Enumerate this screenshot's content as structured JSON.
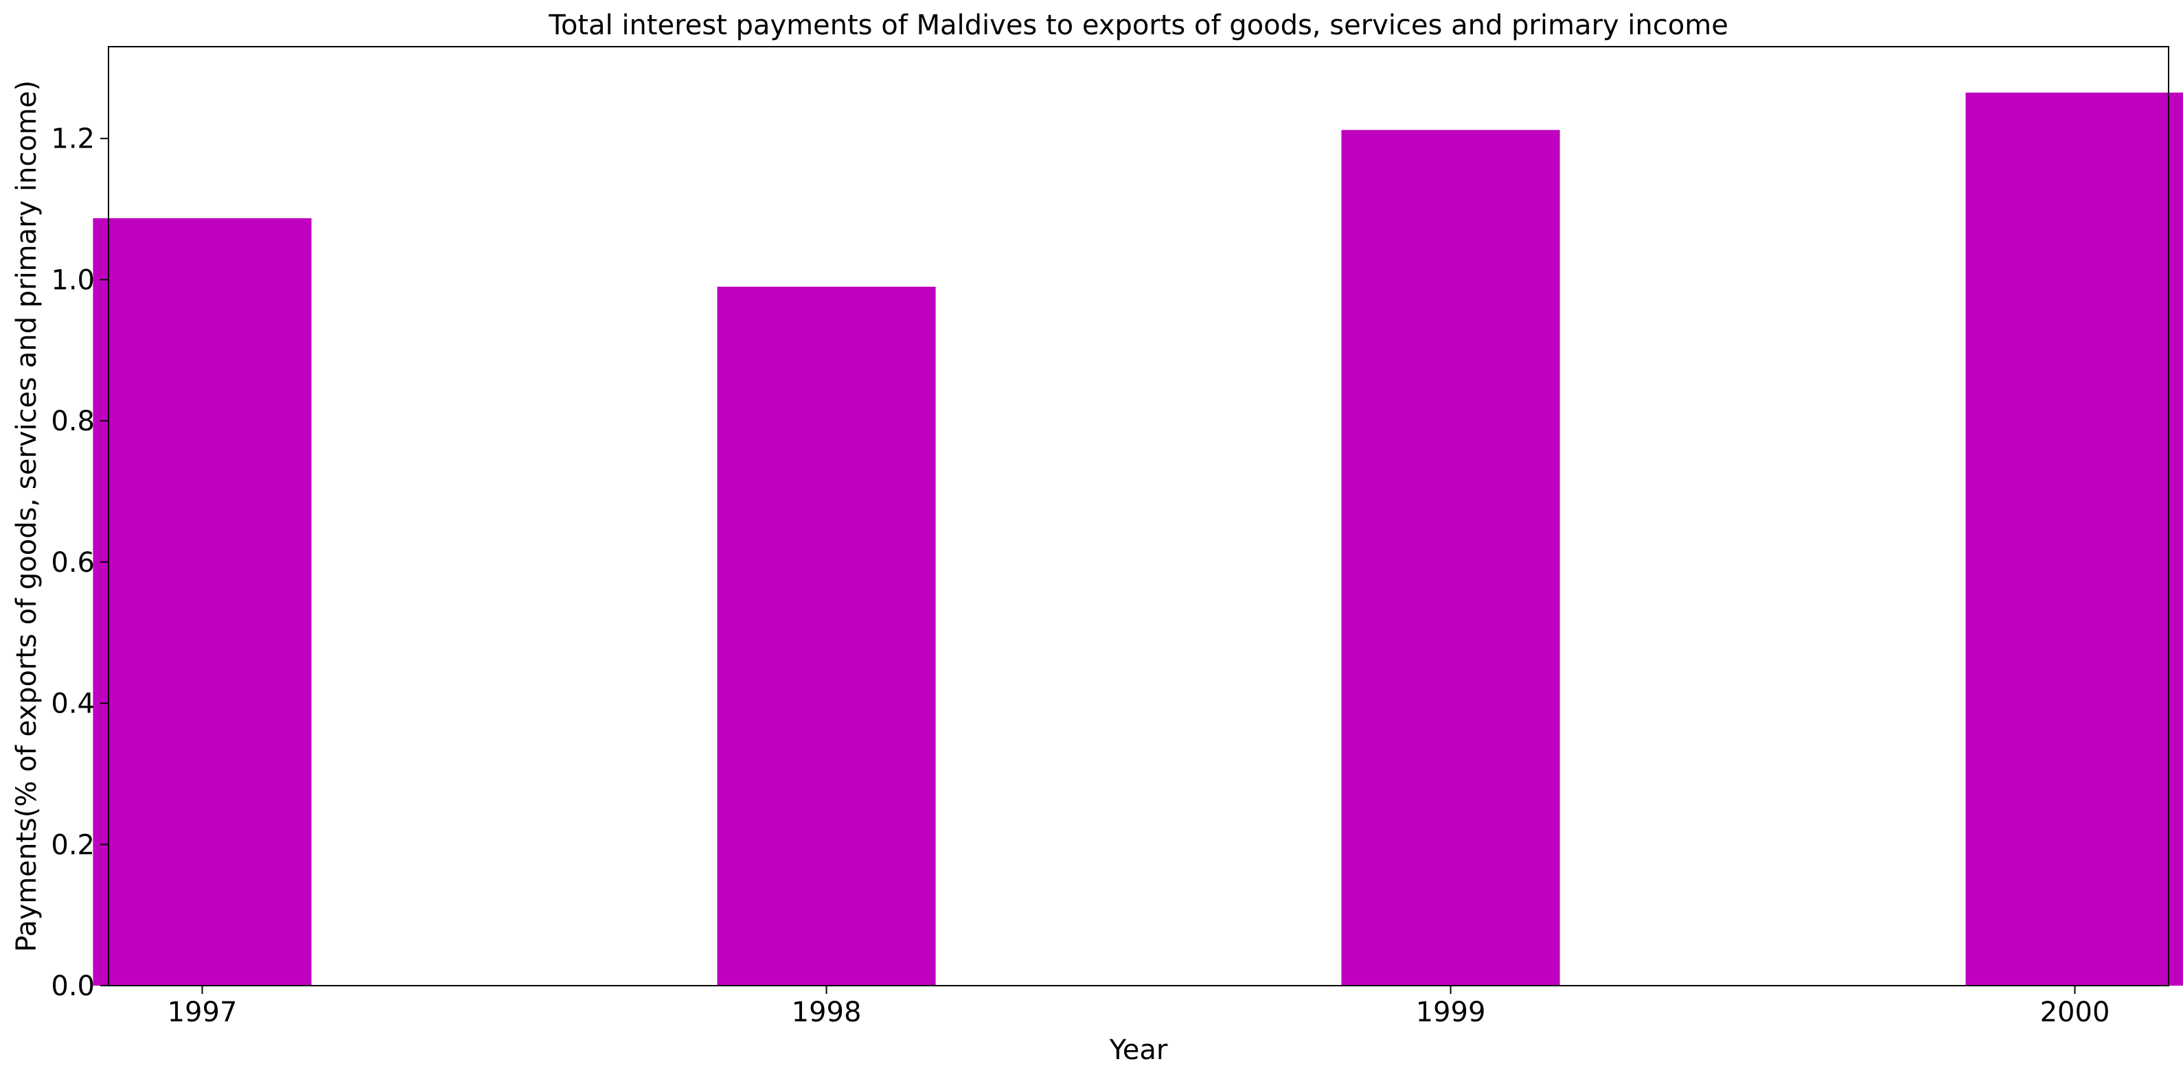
{
  "chart_data": {
    "type": "bar",
    "title": "Total interest payments of Maldives to exports of goods, services and primary income",
    "xlabel": "Year",
    "ylabel": "Payments(% of exports of goods, services and primary income)",
    "categories": [
      "1997",
      "1998",
      "1999",
      "2000"
    ],
    "values": [
      1.087,
      0.99,
      1.212,
      1.265
    ],
    "ylim": [
      0,
      1.33
    ],
    "yticks": [
      0.0,
      0.2,
      0.4,
      0.6,
      0.8,
      1.0,
      1.2
    ],
    "ytick_labels": [
      "0.0",
      "0.2",
      "0.4",
      "0.6",
      "0.8",
      "1.0",
      "1.2"
    ],
    "bar_color": "#bf00bf",
    "grid": false,
    "legend": "none"
  }
}
